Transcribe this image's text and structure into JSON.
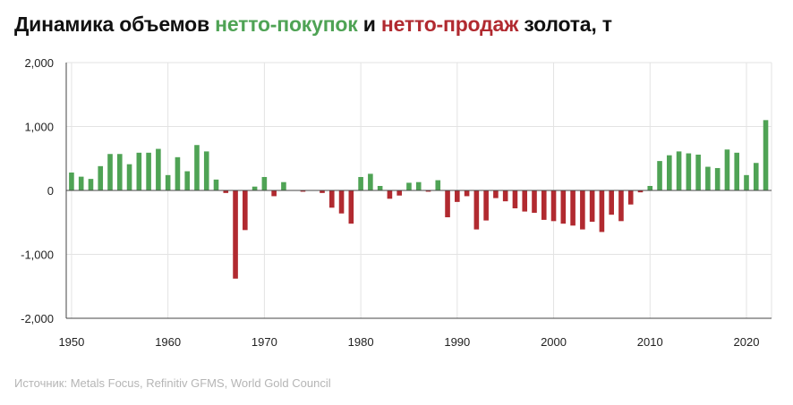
{
  "title": {
    "part1": "Динамика объемов ",
    "buy": "нетто-покупок",
    "part2": " и ",
    "sell": "нетто-продаж",
    "part3": " золота, т"
  },
  "source": "Источник: Metals Focus, Refinitiv GFMS, World Gold Council",
  "colors": {
    "buy": "#4fa355",
    "sell": "#b12a30",
    "grid": "#e3e3e3",
    "axis": "#444444"
  },
  "chart_data": {
    "type": "bar",
    "title": "Динамика объемов нетто-покупок и нетто-продаж золота, т",
    "xlabel": "",
    "ylabel": "",
    "ylim": [
      -2000,
      2000
    ],
    "xlim": [
      1950,
      2022
    ],
    "y_ticks": [
      2000,
      1000,
      0,
      -1000,
      -2000
    ],
    "y_tick_labels": [
      "2,000",
      "1,000",
      "0",
      "-1,000",
      "-2,000"
    ],
    "x_ticks": [
      1950,
      1960,
      1970,
      1980,
      1990,
      2000,
      2010,
      2020
    ],
    "x_tick_labels": [
      "1950",
      "1960",
      "1970",
      "1980",
      "1990",
      "2000",
      "2010",
      "2020"
    ],
    "grid": true,
    "legend": "none",
    "x": [
      1950,
      1951,
      1952,
      1953,
      1954,
      1955,
      1956,
      1957,
      1958,
      1959,
      1960,
      1961,
      1962,
      1963,
      1964,
      1965,
      1966,
      1967,
      1968,
      1969,
      1970,
      1971,
      1972,
      1973,
      1974,
      1975,
      1976,
      1977,
      1978,
      1979,
      1980,
      1981,
      1982,
      1983,
      1984,
      1985,
      1986,
      1987,
      1988,
      1989,
      1990,
      1991,
      1992,
      1993,
      1994,
      1995,
      1996,
      1997,
      1998,
      1999,
      2000,
      2001,
      2002,
      2003,
      2004,
      2005,
      2006,
      2007,
      2008,
      2009,
      2010,
      2011,
      2012,
      2013,
      2014,
      2015,
      2016,
      2017,
      2018,
      2019,
      2020,
      2021,
      2022
    ],
    "values": [
      280,
      215,
      180,
      380,
      570,
      570,
      410,
      590,
      590,
      650,
      240,
      520,
      300,
      710,
      610,
      170,
      -40,
      -1380,
      -620,
      60,
      210,
      -90,
      130,
      0,
      -20,
      0,
      -40,
      -270,
      -360,
      -520,
      210,
      260,
      70,
      -130,
      -80,
      120,
      130,
      -20,
      160,
      -420,
      -180,
      -90,
      -610,
      -470,
      -120,
      -170,
      -280,
      -330,
      -350,
      -460,
      -480,
      -520,
      -550,
      -610,
      -490,
      -650,
      -380,
      -480,
      -220,
      -30,
      70,
      460,
      550,
      610,
      580,
      560,
      370,
      350,
      640,
      590,
      240,
      430,
      1100
    ]
  }
}
